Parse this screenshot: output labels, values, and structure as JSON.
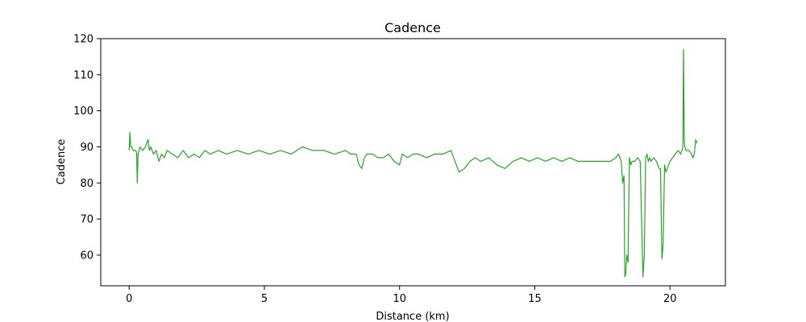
{
  "chart_data": {
    "type": "line",
    "title": "Cadence",
    "xlabel": "Distance (km)",
    "ylabel": "Cadence",
    "xlim": [
      -1.05,
      22.05
    ],
    "ylim": [
      51.5,
      120
    ],
    "xticks": [
      0,
      5,
      10,
      15,
      20
    ],
    "yticks": [
      60,
      70,
      80,
      90,
      100,
      110,
      120
    ],
    "grid": false,
    "series": [
      {
        "color": "#2ca02c",
        "x": [
          0.0,
          0.03,
          0.06,
          0.1,
          0.15,
          0.2,
          0.25,
          0.28,
          0.3,
          0.33,
          0.4,
          0.5,
          0.6,
          0.7,
          0.75,
          0.8,
          0.9,
          1.0,
          1.1,
          1.2,
          1.3,
          1.4,
          1.6,
          1.8,
          2.0,
          2.2,
          2.4,
          2.6,
          2.8,
          3.0,
          3.3,
          3.6,
          4.0,
          4.4,
          4.8,
          5.2,
          5.6,
          6.0,
          6.4,
          6.8,
          7.2,
          7.6,
          8.0,
          8.2,
          8.4,
          8.5,
          8.6,
          8.7,
          8.8,
          9.0,
          9.2,
          9.4,
          9.6,
          9.8,
          10.0,
          10.1,
          10.3,
          10.5,
          10.7,
          11.0,
          11.3,
          11.6,
          11.9,
          12.2,
          12.4,
          12.6,
          12.8,
          13.0,
          13.3,
          13.6,
          13.9,
          14.2,
          14.5,
          14.8,
          15.1,
          15.4,
          15.7,
          16.0,
          16.3,
          16.6,
          16.9,
          17.2,
          17.5,
          17.8,
          18.0,
          18.1,
          18.2,
          18.25,
          18.3,
          18.33,
          18.37,
          18.4,
          18.45,
          18.5,
          18.55,
          18.6,
          18.7,
          18.8,
          18.9,
          19.0,
          19.05,
          19.1,
          19.15,
          19.2,
          19.25,
          19.3,
          19.4,
          19.5,
          19.6,
          19.65,
          19.7,
          19.75,
          19.8,
          19.85,
          19.9,
          20.0,
          20.1,
          20.2,
          20.3,
          20.4,
          20.48,
          20.5,
          20.53,
          20.55,
          20.6,
          20.7,
          20.8,
          20.85,
          20.9,
          20.95,
          21.0
        ],
        "y": [
          89,
          94,
          90,
          90,
          89,
          89,
          89,
          88,
          80,
          88,
          90,
          89,
          90,
          92,
          89,
          90,
          88,
          89,
          86,
          88,
          87,
          89,
          88,
          87,
          89,
          87,
          88,
          87,
          89,
          88,
          89,
          88,
          89,
          88,
          89,
          88,
          89,
          88,
          90,
          89,
          89,
          88,
          89,
          88,
          88,
          85,
          84,
          87,
          88,
          88,
          87,
          87,
          88,
          86,
          85,
          88,
          87,
          88,
          88,
          87,
          88,
          88,
          89,
          83,
          84,
          86,
          87,
          86,
          87,
          85,
          84,
          86,
          87,
          86,
          87,
          86,
          87,
          86,
          87,
          86,
          86,
          86,
          86,
          86,
          87,
          88,
          86,
          80,
          82,
          54,
          55,
          60,
          58,
          87,
          85,
          86,
          86,
          87,
          86,
          54,
          60,
          87,
          88,
          86,
          87,
          86,
          87,
          86,
          84,
          84,
          59,
          63,
          85,
          83,
          84,
          86,
          87,
          88,
          89,
          88,
          90,
          117,
          92,
          90,
          89,
          89,
          88,
          87,
          88,
          92,
          91
        ]
      }
    ]
  }
}
